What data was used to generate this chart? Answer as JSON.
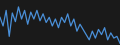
{
  "values": [
    30,
    20,
    38,
    8,
    35,
    25,
    42,
    28,
    38,
    22,
    36,
    28,
    38,
    26,
    34,
    24,
    30,
    20,
    28,
    18,
    30,
    24,
    34,
    20,
    28,
    14,
    22,
    16,
    10,
    4,
    14,
    6,
    16,
    10,
    18,
    4,
    12,
    6,
    8,
    0
  ],
  "line_color": "#4a90d9",
  "background_color": "#1a1a1a",
  "linewidth": 0.9
}
